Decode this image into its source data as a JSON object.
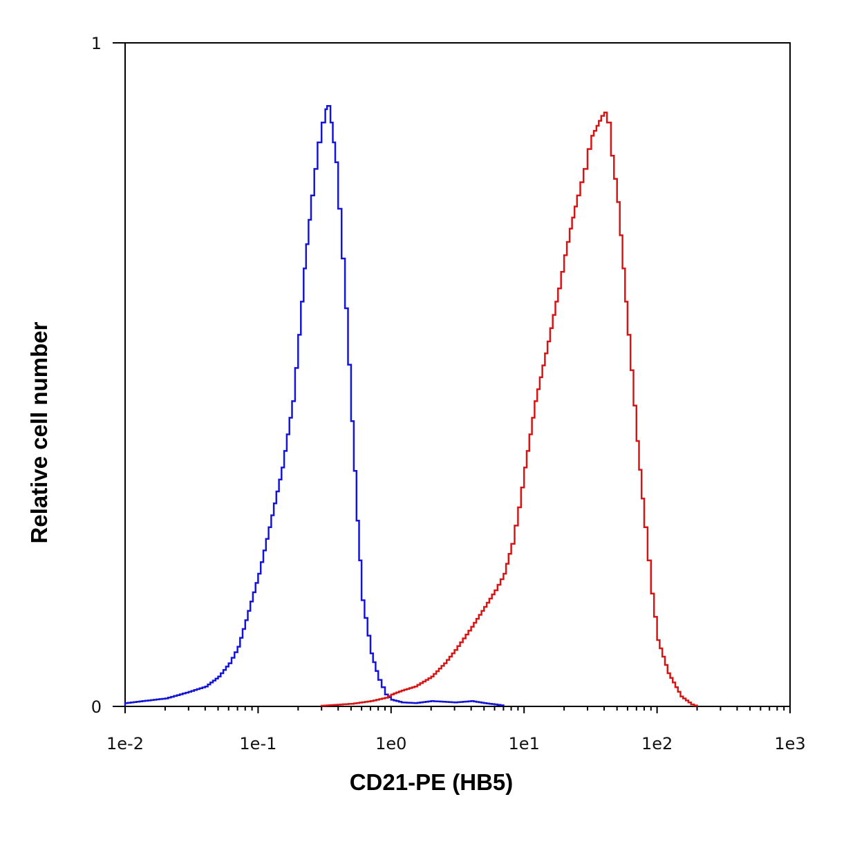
{
  "chart_data": {
    "type": "line",
    "xlabel": "CD21-PE (HB5)",
    "ylabel": "Relative cell number",
    "x_scale": "log",
    "xlim": [
      0.01,
      1000
    ],
    "ylim": [
      0,
      1
    ],
    "x_ticks": [
      {
        "value": 0.01,
        "label": "1e-2"
      },
      {
        "value": 0.1,
        "label": "1e-1"
      },
      {
        "value": 1,
        "label": "1e0"
      },
      {
        "value": 10,
        "label": "1e1"
      },
      {
        "value": 100,
        "label": "1e2"
      },
      {
        "value": 1000,
        "label": "1e3"
      }
    ],
    "y_ticks": [
      {
        "value": 0,
        "label": "0"
      },
      {
        "value": 1,
        "label": "1"
      }
    ],
    "grid": false,
    "legend": "none",
    "series": [
      {
        "color": "#1414d6",
        "x": [
          0.01,
          0.02,
          0.03,
          0.04,
          0.05,
          0.06,
          0.07,
          0.08,
          0.1,
          0.12,
          0.15,
          0.18,
          0.2,
          0.22,
          0.25,
          0.28,
          0.3,
          0.32,
          0.33,
          0.35,
          0.38,
          0.4,
          0.45,
          0.5,
          0.55,
          0.6,
          0.7,
          0.8,
          0.9,
          1.0,
          1.2,
          1.5,
          2,
          3,
          4,
          5,
          6,
          7
        ],
        "y": [
          0.005,
          0.012,
          0.022,
          0.03,
          0.045,
          0.065,
          0.09,
          0.13,
          0.2,
          0.27,
          0.36,
          0.46,
          0.56,
          0.66,
          0.77,
          0.85,
          0.88,
          0.9,
          0.905,
          0.88,
          0.82,
          0.75,
          0.6,
          0.43,
          0.28,
          0.16,
          0.08,
          0.04,
          0.018,
          0.01,
          0.006,
          0.005,
          0.008,
          0.006,
          0.008,
          0.005,
          0.003,
          0.001
        ]
      },
      {
        "color": "#d61414",
        "x": [
          0.3,
          0.5,
          0.7,
          0.9,
          1.0,
          1.2,
          1.5,
          2,
          2.5,
          3,
          4,
          5,
          6,
          7,
          8,
          9,
          10,
          12,
          15,
          18,
          20,
          22,
          25,
          28,
          30,
          32,
          35,
          38,
          40,
          42,
          45,
          50,
          55,
          60,
          70,
          80,
          90,
          100,
          120,
          150,
          180,
          200
        ],
        "y": [
          0.001,
          0.004,
          0.008,
          0.013,
          0.018,
          0.024,
          0.03,
          0.045,
          0.065,
          0.085,
          0.12,
          0.15,
          0.175,
          0.2,
          0.245,
          0.3,
          0.36,
          0.46,
          0.55,
          0.63,
          0.68,
          0.72,
          0.77,
          0.81,
          0.84,
          0.86,
          0.875,
          0.89,
          0.895,
          0.88,
          0.83,
          0.76,
          0.66,
          0.56,
          0.4,
          0.27,
          0.17,
          0.1,
          0.05,
          0.015,
          0.003,
          0.0
        ]
      }
    ]
  }
}
